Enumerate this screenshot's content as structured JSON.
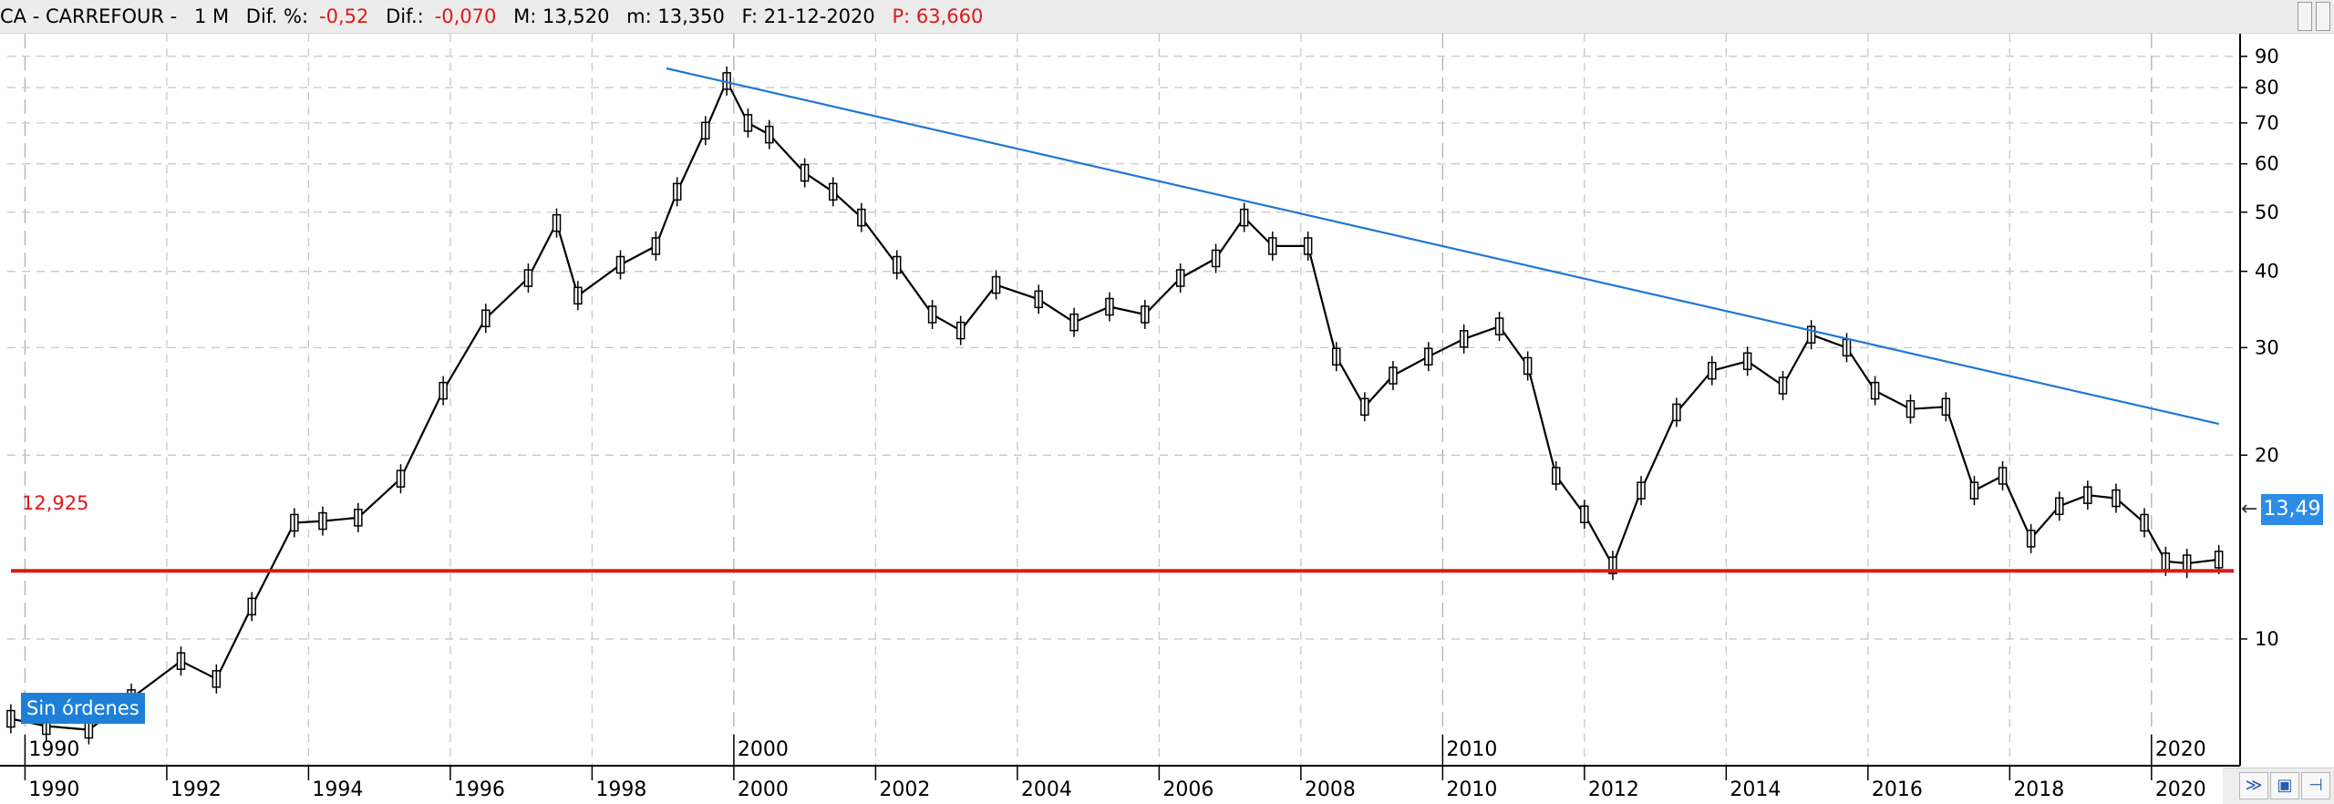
{
  "header": {
    "symbol": "CA - CARREFOUR -",
    "timeframe": "1 M",
    "dif_pct_label": "Dif. %:",
    "dif_pct_value": "-0,52",
    "dif_label": "Dif.:",
    "dif_value": "-0,070",
    "max_label": "M: 13,520",
    "min_label": "m: 13,350",
    "date_label": "F: 21-12-2020",
    "p_label": "P: 63,660"
  },
  "orders_badge": "Sin órdenes",
  "support_level": {
    "value": 12.925,
    "label": "12,925",
    "color": "#e01818"
  },
  "last_price": {
    "value": 13.49,
    "label": "13,49",
    "color": "#2d8ce6"
  },
  "trendline": {
    "color": "#1f78d1",
    "from": {
      "x": 1999.05,
      "y": 86
    },
    "to": {
      "x": 2020.95,
      "y": 22.5
    }
  },
  "chart_data": {
    "type": "line",
    "scale": "log",
    "ylim": [
      6.2,
      98
    ],
    "xlim": [
      1989.75,
      2021.25
    ],
    "y_ticks": [
      10,
      20,
      30,
      40,
      50,
      60,
      70,
      80,
      90
    ],
    "y_tick_labels": [
      "10",
      "20",
      "30",
      "40",
      "50",
      "60",
      "70",
      "80",
      "90"
    ],
    "x_ticks": [
      1990,
      1992,
      1994,
      1996,
      1998,
      2000,
      2002,
      2004,
      2006,
      2008,
      2010,
      2012,
      2014,
      2016,
      2018,
      2020
    ],
    "x_tick_labels": [
      "1990",
      "1992",
      "1994",
      "1996",
      "1998",
      "2000",
      "2002",
      "2004",
      "2006",
      "2008",
      "2010",
      "2012",
      "2014",
      "2016",
      "2018",
      "2020"
    ],
    "decade_labels": [
      "1990",
      "2000",
      "2010",
      "2020"
    ],
    "grid": true,
    "series": [
      {
        "x": [
          1989.8,
          1990.3,
          1990.9,
          1991.5,
          1992.2,
          1992.7,
          1993.2,
          1993.8,
          1994.2,
          1994.7,
          1995.3,
          1995.9,
          1996.5,
          1997.1,
          1997.5,
          1997.8,
          1998.4,
          1998.9,
          1999.2,
          1999.6,
          1999.9,
          2000.2,
          2000.5,
          2001.0,
          2001.4,
          2001.8,
          2002.3,
          2002.8,
          2003.2,
          2003.7,
          2004.3,
          2004.8,
          2005.3,
          2005.8,
          2006.3,
          2006.8,
          2007.2,
          2007.6,
          2008.1,
          2008.5,
          2008.9,
          2009.3,
          2009.8,
          2010.3,
          2010.8,
          2011.2,
          2011.6,
          2012.0,
          2012.4,
          2012.8,
          2013.3,
          2013.8,
          2014.3,
          2014.8,
          2015.2,
          2015.7,
          2016.1,
          2016.6,
          2017.1,
          2017.5,
          2017.9,
          2018.3,
          2018.7,
          2019.1,
          2019.5,
          2019.9,
          2020.2,
          2020.5,
          2020.95
        ],
        "values": [
          7.4,
          7.2,
          7.1,
          8.0,
          9.2,
          8.6,
          11.3,
          15.5,
          15.6,
          15.8,
          18.3,
          25.5,
          33.5,
          39.0,
          48.0,
          36.5,
          41.0,
          44.0,
          54.0,
          68.0,
          82.0,
          70.0,
          67.0,
          58.0,
          54.0,
          49.0,
          41.0,
          34.0,
          32.0,
          38.0,
          36.0,
          33.0,
          35.0,
          34.0,
          39.0,
          42.0,
          49.0,
          44.0,
          44.0,
          29.0,
          24.0,
          27.0,
          29.0,
          31.0,
          32.5,
          28.0,
          18.5,
          16.0,
          13.2,
          17.5,
          23.5,
          27.5,
          28.5,
          26.0,
          31.5,
          30.0,
          25.5,
          23.8,
          24.0,
          17.5,
          18.5,
          14.6,
          16.5,
          17.2,
          17.0,
          15.5,
          13.4,
          13.3,
          13.49
        ]
      }
    ]
  }
}
